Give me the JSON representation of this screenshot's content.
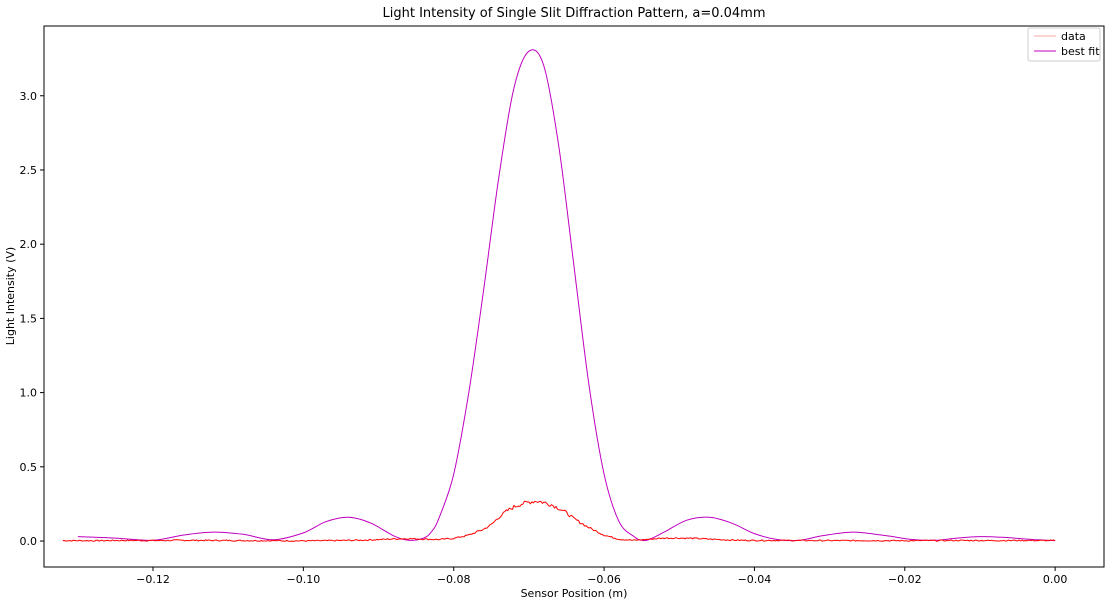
{
  "chart_data": {
    "type": "line",
    "title": "Light Intensity of Single Slit Diffraction Pattern, a=0.04mm",
    "xlabel": "Sensor Position (m)",
    "ylabel": "Light Intensity (V)",
    "xlim": [
      -0.1345,
      0.0065
    ],
    "ylim": [
      -0.175,
      3.47
    ],
    "xticks": [
      -0.12,
      -0.1,
      -0.08,
      -0.06,
      -0.04,
      -0.02,
      0.0
    ],
    "xtick_labels": [
      "−0.12",
      "−0.10",
      "−0.08",
      "−0.06",
      "−0.04",
      "−0.02",
      "0.00"
    ],
    "yticks": [
      0.0,
      0.5,
      1.0,
      1.5,
      2.0,
      2.5,
      3.0
    ],
    "ytick_labels": [
      "0.0",
      "0.5",
      "1.0",
      "1.5",
      "2.0",
      "2.5",
      "3.0"
    ],
    "grid": false,
    "legend_position": "top-right",
    "series": [
      {
        "name": "data",
        "color": "#ff0000",
        "legend_color": "#f4a6a6",
        "x": [
          -0.132,
          -0.128,
          -0.124,
          -0.12,
          -0.116,
          -0.112,
          -0.108,
          -0.104,
          -0.1,
          -0.096,
          -0.092,
          -0.09,
          -0.088,
          -0.086,
          -0.084,
          -0.082,
          -0.08,
          -0.078,
          -0.076,
          -0.075,
          -0.074,
          -0.073,
          -0.072,
          -0.071,
          -0.07,
          -0.069,
          -0.068,
          -0.067,
          -0.066,
          -0.065,
          -0.064,
          -0.062,
          -0.06,
          -0.058,
          -0.056,
          -0.054,
          -0.052,
          -0.05,
          -0.048,
          -0.046,
          -0.044,
          -0.042,
          -0.04,
          -0.036,
          -0.032,
          -0.028,
          -0.024,
          -0.02,
          -0.016,
          -0.012,
          -0.008,
          -0.004,
          0.0
        ],
        "y": [
          0.003,
          0.002,
          0.004,
          0.003,
          0.005,
          0.004,
          0.003,
          0.002,
          0.001,
          0.003,
          0.006,
          0.01,
          0.014,
          0.016,
          0.013,
          0.01,
          0.018,
          0.04,
          0.08,
          0.11,
          0.16,
          0.2,
          0.23,
          0.25,
          0.262,
          0.27,
          0.26,
          0.245,
          0.22,
          0.19,
          0.15,
          0.09,
          0.04,
          0.012,
          0.005,
          0.012,
          0.02,
          0.02,
          0.018,
          0.013,
          0.008,
          0.005,
          0.004,
          0.004,
          0.003,
          0.003,
          0.003,
          0.002,
          0.003,
          0.004,
          0.003,
          0.004,
          0.003
        ]
      },
      {
        "name": "best fit",
        "color": "#bf00bf",
        "x": [
          -0.13,
          -0.125,
          -0.12,
          -0.116,
          -0.112,
          -0.108,
          -0.104,
          -0.1,
          -0.097,
          -0.094,
          -0.091,
          -0.088,
          -0.086,
          -0.084,
          -0.083,
          -0.082,
          -0.08,
          -0.078,
          -0.076,
          -0.074,
          -0.072,
          -0.07,
          -0.068,
          -0.066,
          -0.064,
          -0.062,
          -0.06,
          -0.058,
          -0.056,
          -0.055,
          -0.054,
          -0.052,
          -0.049,
          -0.046,
          -0.043,
          -0.04,
          -0.037,
          -0.034,
          -0.031,
          -0.027,
          -0.023,
          -0.019,
          -0.016,
          -0.013,
          -0.01,
          -0.007,
          -0.003,
          0.0
        ],
        "y": [
          0.03,
          0.02,
          0.005,
          0.04,
          0.06,
          0.045,
          0.008,
          0.055,
          0.13,
          0.16,
          0.12,
          0.035,
          0.005,
          0.02,
          0.06,
          0.15,
          0.45,
          1.0,
          1.7,
          2.45,
          3.05,
          3.3,
          3.2,
          2.65,
          1.85,
          1.05,
          0.45,
          0.13,
          0.03,
          0.005,
          0.01,
          0.06,
          0.14,
          0.16,
          0.12,
          0.05,
          0.01,
          0.005,
          0.035,
          0.06,
          0.04,
          0.01,
          0.005,
          0.02,
          0.03,
          0.025,
          0.01,
          0.003
        ]
      }
    ]
  }
}
